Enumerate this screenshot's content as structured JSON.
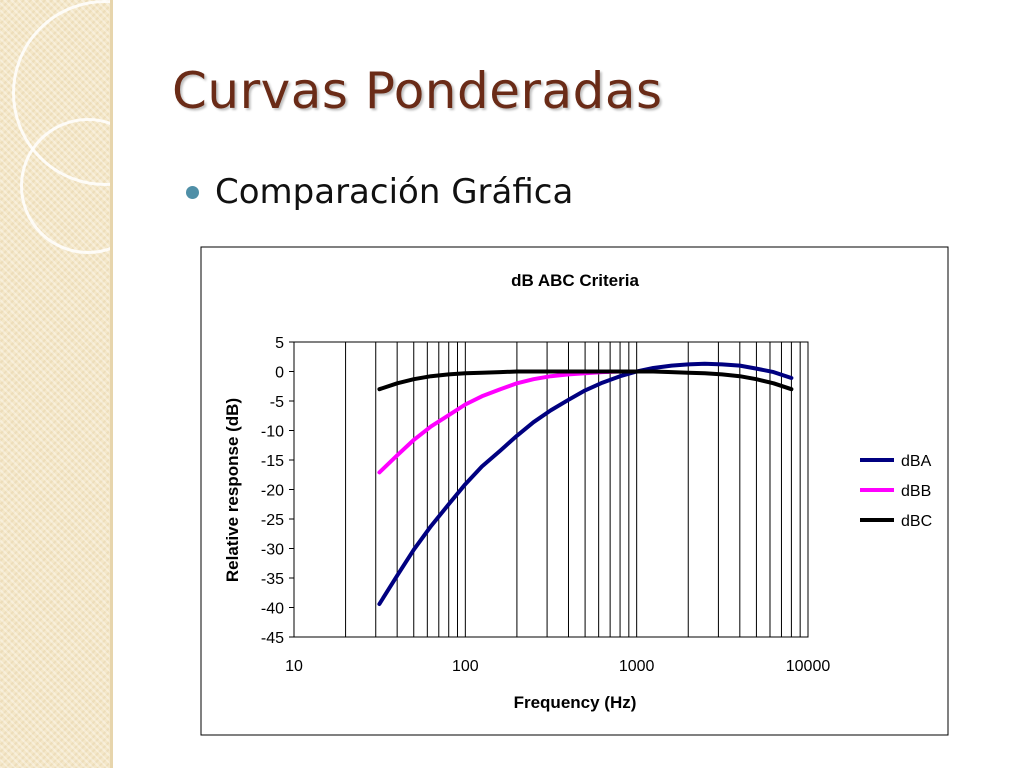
{
  "slide": {
    "title": "Curvas Ponderadas",
    "bullet": "Comparación Gráfica"
  },
  "chart_data": {
    "type": "line",
    "title": "dB ABC Criteria",
    "xlabel": "Frequency (Hz)",
    "ylabel": "Relative response (dB)",
    "x_scale": "log",
    "xlim": [
      10,
      10000
    ],
    "ylim": [
      -45,
      5
    ],
    "x_ticks": [
      10,
      100,
      1000,
      10000
    ],
    "y_ticks": [
      5,
      0,
      -5,
      -10,
      -15,
      -20,
      -25,
      -30,
      -35,
      -40,
      -45
    ],
    "grid": "vertical",
    "legend_position": "right",
    "series": [
      {
        "name": "dBA",
        "color": "#000080",
        "x": [
          31.5,
          40,
          50,
          63,
          80,
          100,
          125,
          160,
          200,
          250,
          315,
          400,
          500,
          630,
          800,
          1000,
          1250,
          1600,
          2000,
          2500,
          3150,
          4000,
          5000,
          6300,
          8000
        ],
        "y": [
          -39.4,
          -34.6,
          -30.2,
          -26.2,
          -22.5,
          -19.1,
          -16.1,
          -13.4,
          -10.9,
          -8.6,
          -6.6,
          -4.8,
          -3.2,
          -1.9,
          -0.8,
          0,
          0.6,
          1.0,
          1.2,
          1.3,
          1.2,
          1.0,
          0.5,
          -0.1,
          -1.1
        ]
      },
      {
        "name": "dBB",
        "color": "#ff00ff",
        "x": [
          31.5,
          40,
          50,
          63,
          80,
          100,
          125,
          160,
          200,
          250,
          315,
          400,
          500,
          630,
          800,
          1000
        ],
        "y": [
          -17.1,
          -14.2,
          -11.6,
          -9.3,
          -7.4,
          -5.6,
          -4.2,
          -3.0,
          -2.0,
          -1.3,
          -0.8,
          -0.5,
          -0.3,
          -0.1,
          0,
          0
        ]
      },
      {
        "name": "dBC",
        "color": "#000000",
        "x": [
          31.5,
          40,
          50,
          63,
          80,
          100,
          125,
          160,
          200,
          250,
          315,
          400,
          500,
          630,
          800,
          1000,
          1250,
          1600,
          2000,
          2500,
          3150,
          4000,
          5000,
          6300,
          8000
        ],
        "y": [
          -3.0,
          -2.0,
          -1.3,
          -0.8,
          -0.5,
          -0.3,
          -0.2,
          -0.1,
          0,
          0,
          0,
          0,
          0,
          0,
          0,
          0,
          0,
          -0.1,
          -0.2,
          -0.3,
          -0.5,
          -0.8,
          -1.3,
          -2.0,
          -3.0
        ]
      }
    ]
  }
}
